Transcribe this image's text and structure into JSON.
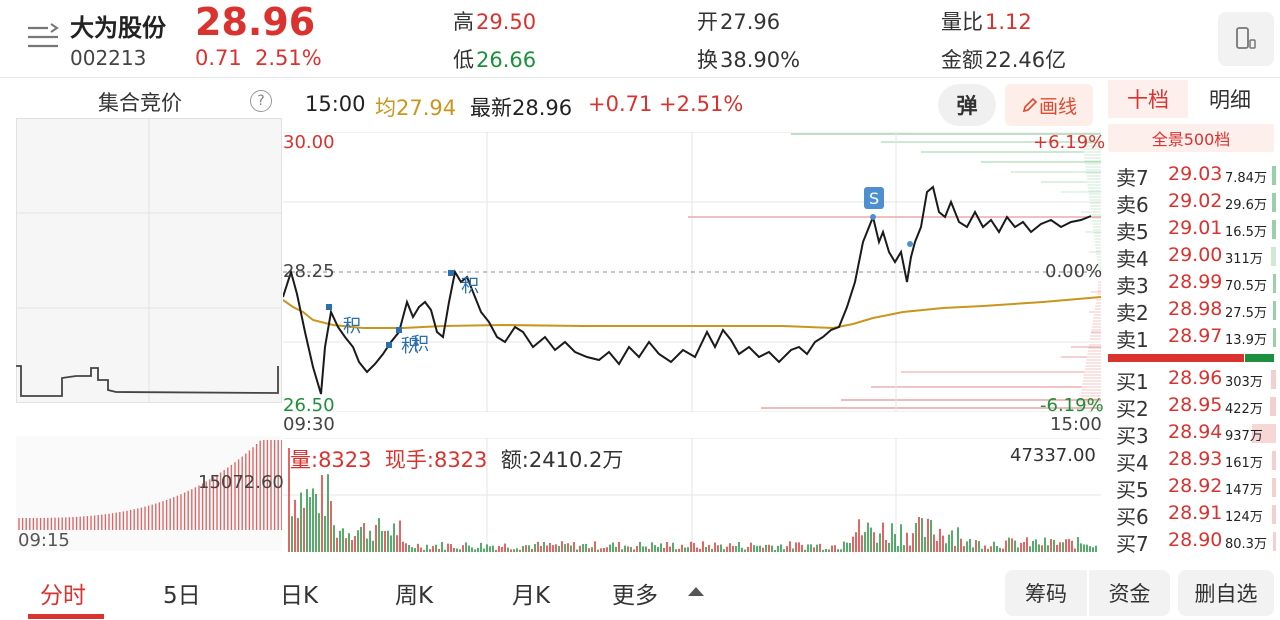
{
  "header": {
    "name": "大为股份",
    "code": "002213",
    "price": "28.96",
    "change": "0.71",
    "change_pct": "2.51%",
    "high_label": "高",
    "high": "29.50",
    "low_label": "低",
    "low": "26.66",
    "open_label": "开",
    "open": "27.96",
    "turnover_label": "换",
    "turnover": "38.90%",
    "vol_ratio_label": "量比",
    "vol_ratio": "1.12",
    "amount_label": "金额",
    "amount": "22.46亿",
    "phone_icon": "phone-icon"
  },
  "auction": {
    "title": "集合竞价",
    "help": "?",
    "time": "09:15",
    "vol_label": "15072.60"
  },
  "info": {
    "time": "15:00",
    "avg": "均27.94",
    "latest": "最新28.96",
    "chg": "+0.71",
    "pct": "+2.51%",
    "btn_tan": "弹",
    "btn_draw": "画线"
  },
  "axis": {
    "y_top": "30.00",
    "y_mid": "28.25",
    "y_bot": "26.50",
    "pct_top": "+6.19%",
    "pct_mid": "0.00%",
    "pct_bot": "-6.19%",
    "x_start": "09:30",
    "x_end": "15:00"
  },
  "marks": {
    "ji": "积",
    "s": "S"
  },
  "volume": {
    "vol": "量:8323",
    "xianshou": "现手:8323",
    "amount": "额:2410.2万",
    "max": "47337.00"
  },
  "orderbook": {
    "tab_ten": "十档",
    "tab_detail": "明细",
    "full": "全景500档",
    "asks": [
      {
        "label": "卖7",
        "price": "29.03",
        "vol": "7.84万"
      },
      {
        "label": "卖6",
        "price": "29.02",
        "vol": "29.6万"
      },
      {
        "label": "卖5",
        "price": "29.01",
        "vol": "16.5万"
      },
      {
        "label": "卖4",
        "price": "29.00",
        "vol": "311万"
      },
      {
        "label": "卖3",
        "price": "28.99",
        "vol": "70.5万"
      },
      {
        "label": "卖2",
        "price": "28.98",
        "vol": "27.5万"
      },
      {
        "label": "卖1",
        "price": "28.97",
        "vol": "13.9万"
      }
    ],
    "bids": [
      {
        "label": "买1",
        "price": "28.96",
        "vol": "303万"
      },
      {
        "label": "买2",
        "price": "28.95",
        "vol": "422万"
      },
      {
        "label": "买3",
        "price": "28.94",
        "vol": "937万"
      },
      {
        "label": "买4",
        "price": "28.93",
        "vol": "161万"
      },
      {
        "label": "买5",
        "price": "28.92",
        "vol": "147万"
      },
      {
        "label": "买6",
        "price": "28.91",
        "vol": "124万"
      },
      {
        "label": "买7",
        "price": "28.90",
        "vol": "80.3万"
      }
    ]
  },
  "tabs": {
    "fenshi": "分时",
    "wuri": "5日",
    "rik": "日K",
    "zhouk": "周K",
    "yuek": "月K",
    "more": "更多",
    "chouma": "筹码",
    "zijin": "资金",
    "delete": "删自选"
  }
}
